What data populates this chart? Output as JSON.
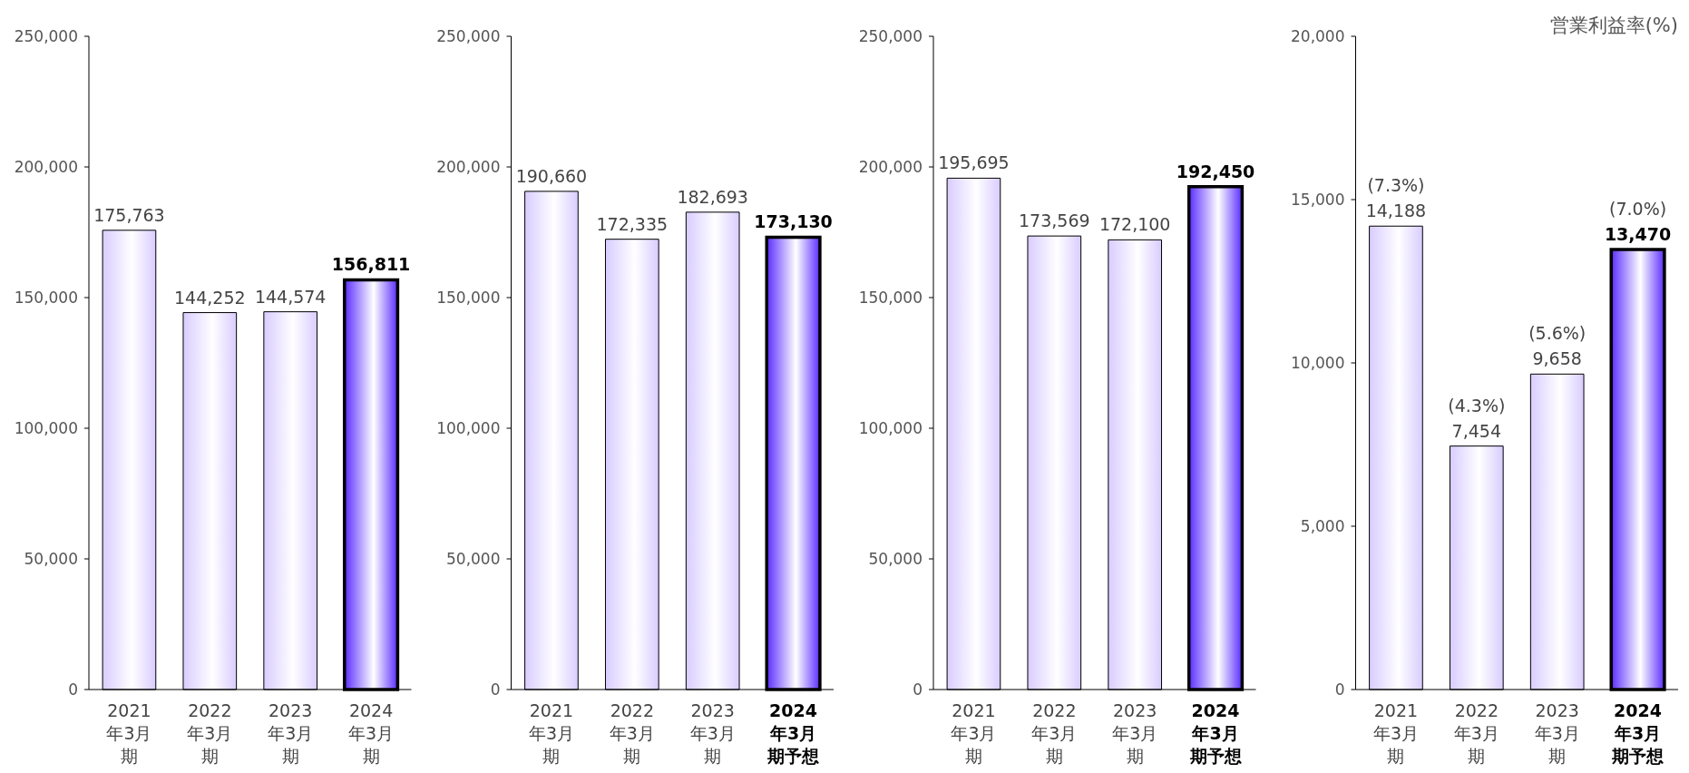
{
  "chart_data": [
    {
      "type": "bar",
      "categories": [
        "2021年3月期",
        "2022年3月期",
        "2023年3月期",
        "2024年3月期"
      ],
      "values": [
        175763,
        144252,
        144574,
        156811
      ],
      "value_labels": [
        "175,763",
        "144,252",
        "144,574",
        "156,811"
      ],
      "colors": [
        "#d9ccff",
        "#d9ccff",
        "#d9ccff",
        "#5a2cff"
      ],
      "ylim": [
        0,
        250000
      ],
      "yticks": [
        {
          "value": 0,
          "label": "0"
        },
        {
          "value": 50000,
          "label": "50,000"
        },
        {
          "value": 100000,
          "label": "100,000"
        },
        {
          "value": 150000,
          "label": "150,000"
        },
        {
          "value": 200000,
          "label": "200,000"
        },
        {
          "value": 250000,
          "label": "250,000"
        }
      ],
      "grid": false
    },
    {
      "type": "bar",
      "categories": [
        "2021年3月期",
        "2022年3月期",
        "2023年3月期",
        "2024年3月期予想"
      ],
      "values": [
        190660,
        172335,
        182693,
        173130
      ],
      "value_labels": [
        "190,660",
        "172,335",
        "182,693",
        "173,130"
      ],
      "colors": [
        "#d9ccff",
        "#d9ccff",
        "#d9ccff",
        "#5a2cff"
      ],
      "ylim": [
        0,
        250000
      ],
      "yticks": [
        {
          "value": 0,
          "label": "0"
        },
        {
          "value": 50000,
          "label": "50,000"
        },
        {
          "value": 100000,
          "label": "100,000"
        },
        {
          "value": 150000,
          "label": "150,000"
        },
        {
          "value": 200000,
          "label": "200,000"
        },
        {
          "value": 250000,
          "label": "250,000"
        }
      ],
      "grid": false
    },
    {
      "type": "bar",
      "categories": [
        "2021年3月期",
        "2022年3月期",
        "2023年3月期",
        "2024年3月期予想"
      ],
      "values": [
        195695,
        173569,
        172100,
        192450
      ],
      "value_labels": [
        "195,695",
        "173,569",
        "172,100",
        "192,450"
      ],
      "colors": [
        "#d9ccff",
        "#d9ccff",
        "#d9ccff",
        "#5a2cff"
      ],
      "ylim": [
        0,
        250000
      ],
      "yticks": [
        {
          "value": 0,
          "label": "0"
        },
        {
          "value": 50000,
          "label": "50,000"
        },
        {
          "value": 100000,
          "label": "100,000"
        },
        {
          "value": 150000,
          "label": "150,000"
        },
        {
          "value": 200000,
          "label": "200,000"
        },
        {
          "value": 250000,
          "label": "250,000"
        }
      ],
      "grid": false
    },
    {
      "type": "bar",
      "categories": [
        "2021年3月期",
        "2022年3月期",
        "2023年3月期",
        "2024年3月期予想"
      ],
      "values": [
        14188,
        7454,
        9658,
        13470
      ],
      "value_labels": [
        "14,188",
        "7,454",
        "9,658",
        "13,470"
      ],
      "colors": [
        "#d9ccff",
        "#d9ccff",
        "#d9ccff",
        "#5a2cff"
      ],
      "ylim": [
        0,
        20000
      ],
      "yticks": [
        {
          "value": 0,
          "label": "0"
        },
        {
          "value": 5000,
          "label": "5,000"
        },
        {
          "value": 10000,
          "label": "10,000"
        },
        {
          "value": 15000,
          "label": "15,000"
        },
        {
          "value": 20000,
          "label": "20,000"
        }
      ],
      "grid": false,
      "annotations": [
        "営業利益率(%)",
        {
          "text": "(7.3%)",
          "x": "2021年3月期",
          "y": 14188
        },
        {
          "text": "(4.3%)",
          "x": "2022年3月期",
          "y": 7454
        },
        {
          "text": "(5.6%)",
          "x": "2023年3月期",
          "y": 9658
        },
        {
          "text": "(7.0%)",
          "x": "2024年3月期予想",
          "y": 13470
        }
      ]
    }
  ]
}
